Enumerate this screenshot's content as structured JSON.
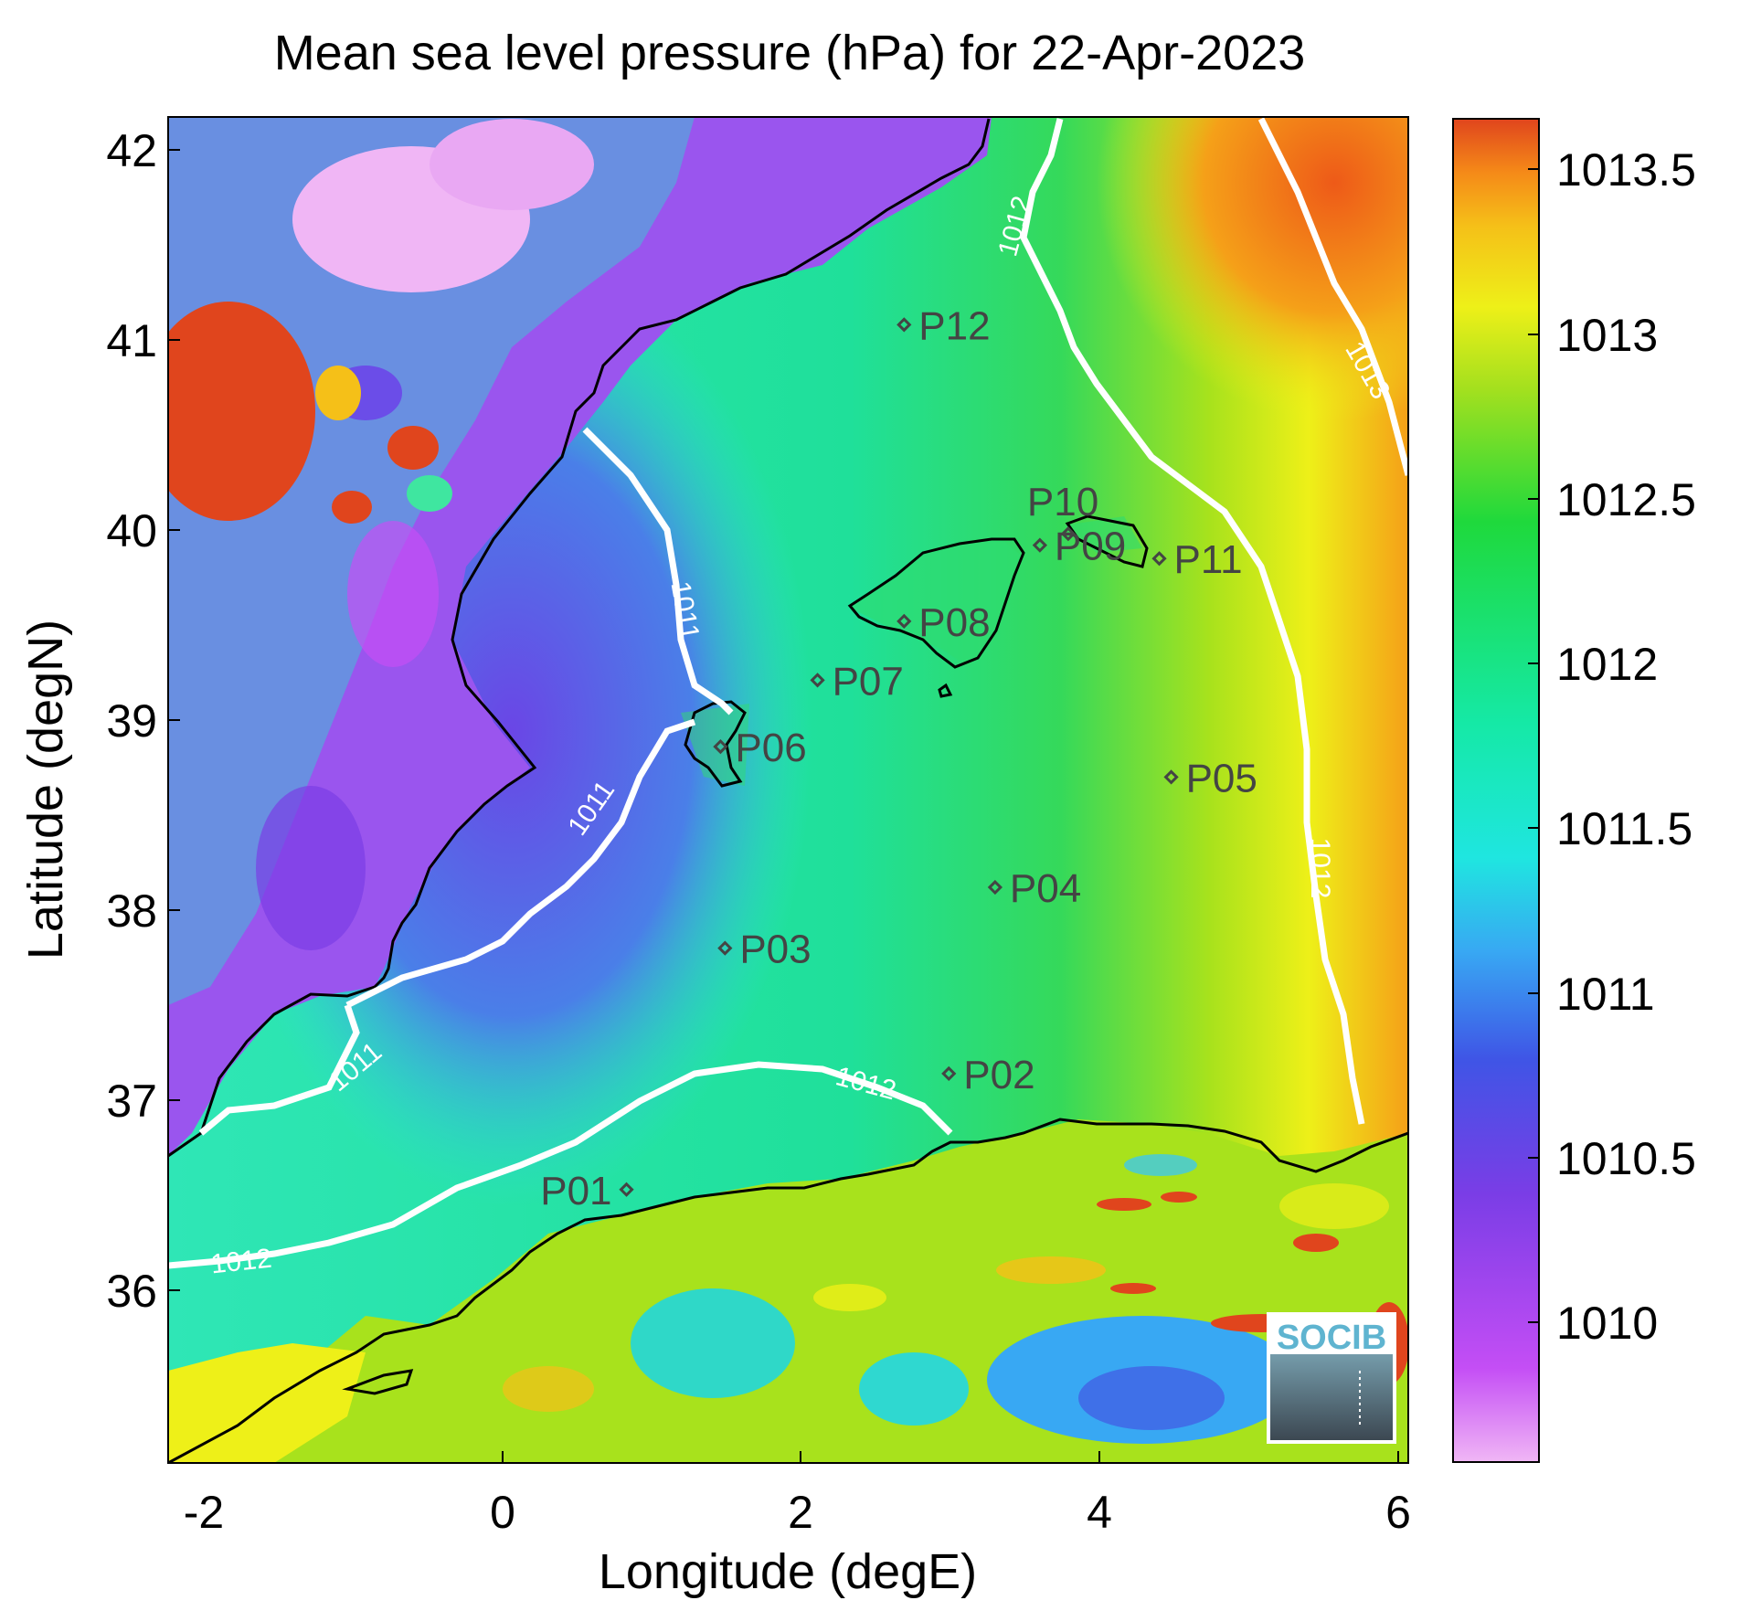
{
  "title": "Mean sea level pressure (hPa) for 22-Apr-2023",
  "axes": {
    "xlabel": "Longitude (degE)",
    "ylabel": "Latitude (degN)",
    "x_ticks": [
      "-2",
      "0",
      "2",
      "4",
      "6"
    ],
    "y_ticks": [
      "42",
      "41",
      "40",
      "39",
      "38",
      "37",
      "36"
    ]
  },
  "colorbar": {
    "ticks": [
      "1013.5",
      "1013",
      "1012.5",
      "1012",
      "1011.5",
      "1011",
      "1010.5",
      "1010"
    ],
    "colors": [
      "#f0b6f5",
      "#c44ef5",
      "#7a3de6",
      "#3f55e6",
      "#38a8f3",
      "#1fe6e0",
      "#15e9a6",
      "#1fd93c",
      "#a5e01e",
      "#eef018",
      "#f5c018",
      "#f58a18",
      "#e0451d"
    ]
  },
  "points": [
    {
      "label": "P01",
      "lon": 0.83,
      "lat": 36.53
    },
    {
      "label": "P02",
      "lon": 2.99,
      "lat": 37.14
    },
    {
      "label": "P03",
      "lon": 1.49,
      "lat": 37.8
    },
    {
      "label": "P04",
      "lon": 3.3,
      "lat": 38.12
    },
    {
      "label": "P05",
      "lon": 4.48,
      "lat": 38.7
    },
    {
      "label": "P06",
      "lon": 1.46,
      "lat": 38.86
    },
    {
      "label": "P07",
      "lon": 2.11,
      "lat": 39.21
    },
    {
      "label": "P08",
      "lon": 2.69,
      "lat": 39.52
    },
    {
      "label": "P09",
      "lon": 3.6,
      "lat": 39.92
    },
    {
      "label": "P10",
      "lon": 3.79,
      "lat": 39.98
    },
    {
      "label": "P11",
      "lon": 4.4,
      "lat": 39.85
    },
    {
      "label": "P12",
      "lon": 2.69,
      "lat": 41.08
    }
  ],
  "contour_labels": [
    "1011",
    "1011",
    "1011",
    "1012",
    "1012",
    "1012",
    "1012",
    "1013"
  ],
  "logo": "SOCIB"
}
